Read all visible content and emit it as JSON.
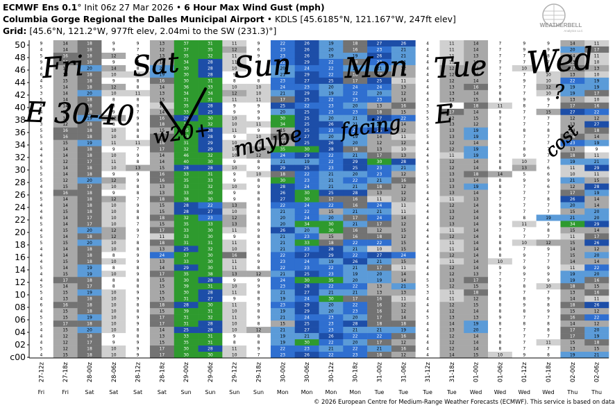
{
  "header": {
    "model": "ECMWF Ens 0.1",
    "model_deg": "°",
    "init": "Init 06z 27 Mar 2026",
    "sep": "•",
    "product": "6 Hour Max Wind Gust (mph)",
    "site_name": "Columbia Gorge Regional the Dalles Municipal Airport",
    "site_code": "KDLS",
    "site_coords": "[45.6185°N, 121.167°W, 247ft elev]",
    "grid_label": "Grid:",
    "grid_info": "[45.6°N, 121.2°W, 977ft elev, 2.04mi to the SW (231.3)°]"
  },
  "logo": {
    "text": "WEATHERBELL",
    "subtext": "Analytics LLC"
  },
  "footer": "© 2026 European Centre for Medium-Range Weather Forecasts (ECMWF). This service is based on data and",
  "colors": {
    "lightgray": "#d0d0d0",
    "midgray": "#a8a8a8",
    "darkgray": "#737373",
    "lightblue": "#5b9bd8",
    "blue": "#2f6fd0",
    "darkblue": "#1d4ea8",
    "green": "#2e9a2e",
    "ink": "#000000"
  },
  "chart_data": {
    "type": "heatmap",
    "title": "6 Hour Max Wind Gust (mph)",
    "units": "mph",
    "x": [
      "27-12z",
      "27-18z",
      "28-00z",
      "28-06z",
      "28-12z",
      "28-18z",
      "29-00z",
      "29-06z",
      "29-12z",
      "29-18z",
      "30-00z",
      "30-06z",
      "30-12z",
      "30-18z",
      "31-00z",
      "31-06z",
      "31-12z",
      "31-18z",
      "01-00z",
      "01-06z",
      "01-12z",
      "01-18z",
      "02-00z",
      "02-06z"
    ],
    "x_days": [
      "Fri",
      "Fri",
      "Sat",
      "Sat",
      "Sat",
      "Sat",
      "Sun",
      "Sun",
      "Sun",
      "Sun",
      "Mon",
      "Mon",
      "Mon",
      "Mon",
      "Tue",
      "Tue",
      "Tue",
      "Tue",
      "Wed",
      "Wed",
      "Wed",
      "Wed",
      "Thu",
      "Thu"
    ],
    "y": [
      "50",
      "48",
      "46",
      "44",
      "42",
      "40",
      "38",
      "36",
      "34",
      "32",
      "30",
      "28",
      "26",
      "24",
      "22",
      "20",
      "18",
      "16",
      "14",
      "12",
      "10",
      "08",
      "06",
      "04",
      "02",
      "c00"
    ],
    "values": [
      [
        9,
        14,
        18,
        9,
        9,
        13,
        37,
        31,
        11,
        9,
        22,
        26,
        19,
        18,
        27,
        26,
        4,
        11,
        14,
        7,
        9,
        9,
        14,
        11
      ],
      [
        4,
        14,
        18,
        9,
        7,
        12,
        37,
        35,
        12,
        6,
        23,
        26,
        20,
        16,
        23,
        21,
        4,
        11,
        14,
        7,
        9,
        9,
        20,
        17
      ],
      [
        5,
        16,
        18,
        12,
        7,
        13,
        35,
        32,
        11,
        9,
        23,
        26,
        19,
        19,
        26,
        21,
        4,
        11,
        13,
        7,
        7,
        8,
        14,
        11
      ],
      [
        9,
        16,
        18,
        9,
        7,
        14,
        34,
        28,
        11,
        9,
        22,
        29,
        22,
        18,
        23,
        21,
        4,
        11,
        14,
        7,
        7,
        7,
        13,
        10
      ],
      [
        4,
        15,
        20,
        14,
        8,
        20,
        30,
        28,
        10,
        9,
        20,
        24,
        22,
        19,
        21,
        12,
        4,
        12,
        14,
        7,
        10,
        9,
        17,
        13
      ],
      [
        6,
        13,
        18,
        10,
        10,
        19,
        30,
        28,
        9,
        8,
        21,
        29,
        22,
        18,
        17,
        15,
        4,
        12,
        14,
        7,
        7,
        10,
        13,
        10
      ],
      [
        4,
        15,
        18,
        9,
        8,
        16,
        30,
        31,
        8,
        8,
        23,
        27,
        25,
        17,
        25,
        11,
        4,
        12,
        14,
        7,
        9,
        10,
        22,
        19
      ],
      [
        5,
        14,
        18,
        12,
        8,
        14,
        36,
        33,
        10,
        10,
        24,
        23,
        20,
        24,
        24,
        13,
        4,
        13,
        16,
        9,
        7,
        12,
        19,
        19
      ],
      [
        3,
        14,
        20,
        10,
        11,
        13,
        34,
        34,
        12,
        10,
        21,
        29,
        19,
        22,
        20,
        12,
        4,
        13,
        14,
        8,
        7,
        10,
        19,
        17
      ],
      [
        5,
        14,
        18,
        8,
        8,
        15,
        31,
        31,
        11,
        11,
        17,
        25,
        22,
        23,
        23,
        14,
        4,
        13,
        15,
        8,
        9,
        9,
        13,
        10
      ],
      [
        5,
        14,
        18,
        8,
        8,
        11,
        35,
        28,
        9,
        9,
        25,
        22,
        23,
        20,
        13,
        16,
        3,
        9,
        18,
        11,
        8,
        7,
        17,
        16
      ],
      [
        4,
        13,
        18,
        9,
        7,
        14,
        33,
        25,
        9,
        9,
        20,
        25,
        23,
        23,
        18,
        15,
        5,
        17,
        14,
        8,
        7,
        15,
        27,
        22
      ],
      [
        5,
        14,
        19,
        12,
        9,
        16,
        29,
        30,
        10,
        9,
        30,
        25,
        20,
        21,
        27,
        22,
        5,
        12,
        15,
        7,
        7,
        7,
        12,
        12
      ],
      [
        3,
        12,
        18,
        8,
        8,
        18,
        34,
        32,
        10,
        11,
        34,
        25,
        26,
        21,
        20,
        14,
        6,
        13,
        12,
        8,
        7,
        7,
        13,
        27
      ],
      [
        5,
        16,
        18,
        10,
        8,
        15,
        35,
        28,
        11,
        9,
        15,
        25,
        23,
        24,
        25,
        12,
        5,
        13,
        19,
        8,
        8,
        8,
        14,
        18
      ],
      [
        5,
        16,
        18,
        10,
        8,
        16,
        33,
        28,
        9,
        10,
        17,
        27,
        20,
        19,
        14,
        11,
        5,
        13,
        19,
        8,
        7,
        7,
        16,
        14
      ],
      [
        5,
        15,
        19,
        11,
        11,
        18,
        31,
        29,
        10,
        10,
        14,
        25,
        26,
        20,
        12,
        12,
        4,
        12,
        14,
        8,
        7,
        7,
        23,
        19
      ],
      [
        4,
        14,
        18,
        9,
        7,
        17,
        32,
        29,
        10,
        13,
        35,
        30,
        28,
        18,
        13,
        10,
        4,
        12,
        19,
        7,
        8,
        7,
        13,
        9
      ],
      [
        4,
        14,
        18,
        10,
        9,
        14,
        46,
        32,
        10,
        12,
        24,
        29,
        22,
        21,
        17,
        13,
        4,
        11,
        19,
        8,
        9,
        7,
        18,
        11
      ],
      [
        4,
        12,
        17,
        11,
        8,
        14,
        40,
        30,
        9,
        8,
        21,
        19,
        22,
        29,
        30,
        28,
        4,
        12,
        14,
        8,
        10,
        7,
        19,
        21
      ],
      [
        5,
        14,
        18,
        10,
        13,
        15,
        28,
        28,
        10,
        9,
        29,
        25,
        23,
        25,
        23,
        21,
        5,
        12,
        14,
        8,
        13,
        6,
        11,
        29
      ],
      [
        5,
        14,
        18,
        9,
        9,
        16,
        33,
        31,
        9,
        10,
        18,
        22,
        21,
        20,
        23,
        12,
        5,
        13,
        18,
        14,
        5,
        6,
        10,
        11
      ],
      [
        5,
        12,
        20,
        12,
        9,
        16,
        35,
        33,
        9,
        8,
        30,
        23,
        21,
        22,
        21,
        16,
        4,
        13,
        14,
        8,
        9,
        9,
        21,
        15
      ],
      [
        4,
        15,
        17,
        10,
        8,
        13,
        33,
        32,
        10,
        9,
        28,
        24,
        21,
        21,
        18,
        12,
        5,
        13,
        19,
        8,
        7,
        6,
        12,
        28
      ],
      [
        6,
        16,
        18,
        9,
        8,
        13,
        33,
        30,
        9,
        8,
        26,
        30,
        25,
        28,
        13,
        12,
        4,
        13,
        14,
        9,
        7,
        7,
        17,
        19
      ],
      [
        5,
        14,
        18,
        12,
        7,
        18,
        38,
        30,
        9,
        8,
        27,
        30,
        17,
        16,
        11,
        12,
        4,
        11,
        13,
        7,
        7,
        8,
        26,
        14
      ],
      [
        4,
        14,
        18,
        10,
        9,
        15,
        28,
        22,
        13,
        8,
        22,
        24,
        22,
        16,
        24,
        11,
        4,
        12,
        14,
        9,
        7,
        7,
        20,
        14
      ],
      [
        4,
        15,
        18,
        10,
        8,
        15,
        28,
        27,
        10,
        8,
        21,
        22,
        15,
        21,
        21,
        11,
        4,
        13,
        14,
        9,
        7,
        7,
        15,
        20
      ],
      [
        6,
        14,
        17,
        10,
        8,
        18,
        32,
        23,
        12,
        8,
        20,
        24,
        20,
        17,
        24,
        14,
        4,
        12,
        14,
        9,
        8,
        19,
        21,
        20
      ],
      [
        5,
        14,
        17,
        10,
        7,
        15,
        35,
        33,
        13,
        8,
        20,
        34,
        30,
        21,
        17,
        12,
        4,
        13,
        14,
        9,
        11,
        9,
        34,
        29
      ],
      [
        4,
        15,
        20,
        12,
        9,
        17,
        33,
        30,
        11,
        9,
        26,
        20,
        30,
        16,
        12,
        15,
        4,
        11,
        14,
        7,
        7,
        8,
        15,
        14
      ],
      [
        5,
        14,
        18,
        12,
        7,
        11,
        33,
        30,
        9,
        8,
        21,
        23,
        15,
        16,
        18,
        12,
        4,
        12,
        14,
        8,
        7,
        7,
        11,
        17
      ],
      [
        5,
        15,
        20,
        10,
        8,
        18,
        31,
        31,
        11,
        9,
        21,
        33,
        18,
        22,
        22,
        15,
        4,
        11,
        14,
        8,
        10,
        12,
        15,
        26
      ],
      [
        4,
        14,
        18,
        10,
        8,
        13,
        25,
        32,
        10,
        8,
        21,
        23,
        28,
        21,
        10,
        15,
        4,
        11,
        14,
        8,
        7,
        9,
        14,
        12
      ],
      [
        4,
        14,
        18,
        8,
        9,
        24,
        37,
        30,
        16,
        6,
        22,
        27,
        29,
        22,
        27,
        24,
        4,
        12,
        14,
        8,
        9,
        7,
        15,
        20
      ],
      [
        4,
        15,
        18,
        10,
        9,
        13,
        33,
        30,
        11,
        9,
        23,
        24,
        19,
        26,
        21,
        15,
        4,
        11,
        14,
        10,
        7,
        7,
        14,
        14
      ],
      [
        5,
        14,
        19,
        8,
        8,
        14,
        29,
        30,
        11,
        8,
        22,
        23,
        22,
        21,
        17,
        11,
        4,
        12,
        14,
        9,
        9,
        9,
        11,
        22
      ],
      [
        4,
        15,
        19,
        10,
        9,
        17,
        35,
        38,
        13,
        12,
        21,
        25,
        23,
        19,
        20,
        14,
        4,
        12,
        13,
        7,
        9,
        9,
        19,
        20
      ],
      [
        4,
        17,
        18,
        8,
        8,
        15,
        30,
        28,
        9,
        9,
        24,
        30,
        35,
        20,
        19,
        14,
        5,
        13,
        17,
        7,
        7,
        9,
        19,
        16
      ],
      [
        5,
        14,
        17,
        8,
        8,
        15,
        39,
        31,
        10,
        9,
        23,
        28,
        22,
        22,
        13,
        21,
        5,
        12,
        15,
        9,
        8,
        10,
        18,
        15
      ],
      [
        5,
        15,
        19,
        10,
        9,
        15,
        30,
        28,
        11,
        8,
        21,
        27,
        21,
        21,
        13,
        13,
        3,
        11,
        18,
        8,
        7,
        7,
        13,
        16
      ],
      [
        4,
        13,
        18,
        10,
        9,
        15,
        31,
        27,
        9,
        8,
        19,
        24,
        30,
        17,
        16,
        11,
        4,
        11,
        12,
        8,
        8,
        9,
        14,
        11
      ],
      [
        6,
        16,
        18,
        10,
        8,
        18,
        28,
        30,
        11,
        9,
        23,
        29,
        20,
        22,
        16,
        12,
        4,
        12,
        15,
        8,
        9,
        8,
        18,
        26
      ],
      [
        4,
        15,
        18,
        10,
        8,
        15,
        39,
        31,
        10,
        8,
        19,
        29,
        20,
        23,
        16,
        12,
        4,
        12,
        14,
        8,
        8,
        9,
        15,
        12
      ],
      [
        5,
        15,
        19,
        10,
        9,
        17,
        31,
        32,
        11,
        9,
        21,
        24,
        23,
        20,
        17,
        14,
        5,
        13,
        13,
        9,
        7,
        7,
        16,
        22
      ],
      [
        5,
        17,
        18,
        10,
        9,
        17,
        31,
        28,
        10,
        8,
        15,
        25,
        23,
        28,
        18,
        18,
        4,
        14,
        19,
        8,
        8,
        8,
        14,
        12
      ],
      [
        4,
        15,
        20,
        10,
        8,
        14,
        25,
        28,
        10,
        12,
        21,
        27,
        23,
        21,
        21,
        19,
        4,
        13,
        20,
        7,
        7,
        8,
        17,
        20
      ],
      [
        4,
        12,
        18,
        9,
        8,
        13,
        33,
        31,
        9,
        8,
        19,
        21,
        26,
        22,
        22,
        16,
        4,
        12,
        14,
        8,
        7,
        7,
        17,
        19
      ],
      [
        4,
        12,
        17,
        9,
        9,
        15,
        35,
        31,
        8,
        8,
        19,
        30,
        22,
        20,
        17,
        12,
        4,
        12,
        14,
        8,
        7,
        11,
        15,
        18
      ],
      [
        5,
        12,
        18,
        10,
        9,
        17,
        30,
        28,
        11,
        9,
        22,
        23,
        21,
        22,
        21,
        16,
        4,
        12,
        14,
        8,
        7,
        7,
        13,
        15
      ],
      [
        4,
        15,
        18,
        10,
        9,
        17,
        30,
        30,
        10,
        7,
        23,
        26,
        22,
        23,
        18,
        12,
        4,
        14,
        15,
        10,
        9,
        8,
        19,
        21
      ]
    ],
    "values_note": "",
    "colorscale": "gray (<19) to blue (19-29) to green (>=30)"
  },
  "drawing": {
    "words": [
      "Fri",
      "Sat",
      "Sun",
      "Mon",
      "Tue",
      "Wed",
      "E 30-40",
      "w20+",
      "maybe",
      "facing",
      "E",
      "?",
      "cost"
    ]
  }
}
